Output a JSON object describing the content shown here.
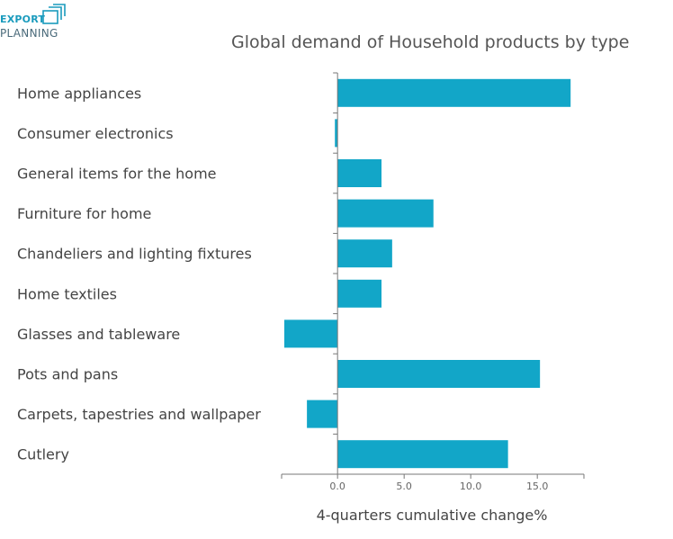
{
  "logo": {
    "line1": "EXPORT",
    "line2": "PLANNING",
    "accent": "#1a9bbd"
  },
  "chart_data": {
    "type": "bar",
    "orientation": "horizontal",
    "title": "Global demand of Household products by type",
    "xlabel": "4-quarters cumulative change%",
    "ylabel": "",
    "categories": [
      "Home appliances",
      "Consumer electronics",
      "General items for the home",
      "Furniture for home",
      "Chandeliers and lighting fixtures",
      "Home textiles",
      "Glasses and tableware",
      "Pots and pans",
      "Carpets, tapestries and wallpaper",
      "Cutlery"
    ],
    "values": [
      17.5,
      -0.2,
      3.3,
      7.2,
      4.1,
      3.3,
      -4.0,
      15.2,
      -2.3,
      12.8
    ],
    "xlim": [
      -4.2,
      18.5
    ],
    "xticks": [
      0,
      5,
      10,
      15
    ],
    "xtick_labels": [
      "0.0",
      "5.0",
      "10.0",
      "15.0"
    ],
    "bar_color": "#12a6c8",
    "grid": false,
    "legend": "none"
  }
}
